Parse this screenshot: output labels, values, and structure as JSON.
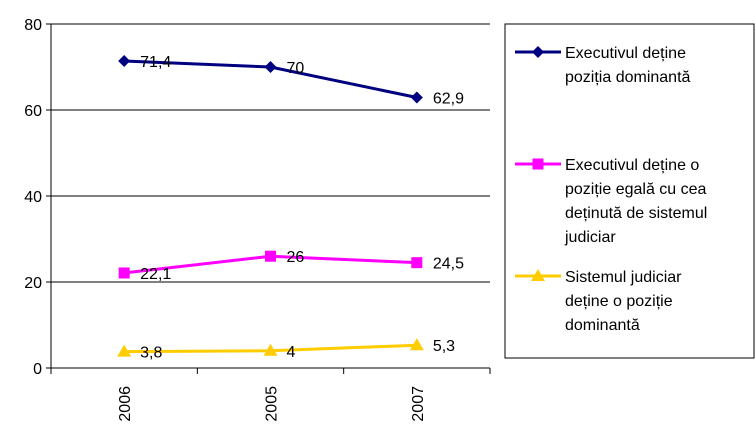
{
  "chart_data": {
    "type": "line",
    "categories": [
      "2006",
      "2005",
      "2007"
    ],
    "ylim": [
      0,
      80
    ],
    "yticks": [
      "0",
      "20",
      "40",
      "60",
      "80"
    ],
    "grid": "horizontal",
    "legend_position": "right",
    "series": [
      {
        "name": "Executivul deține poziția dominantă",
        "name_lines": [
          "Executivul deține",
          "poziția dominantă"
        ],
        "values": [
          71.4,
          70,
          62.9
        ],
        "labels": [
          "71,4",
          "70",
          "62,9"
        ],
        "color": "#000080",
        "marker": "diamond"
      },
      {
        "name": "Executivul deține o poziție egală cu cea deținută de sistemul judiciar",
        "name_lines": [
          "Executivul deține o",
          "poziție egală cu cea",
          "deținută de sistemul",
          "judiciar"
        ],
        "values": [
          22.1,
          26,
          24.5
        ],
        "labels": [
          "22,1",
          "26",
          "24,5"
        ],
        "color": "#FF00FF",
        "marker": "square"
      },
      {
        "name": "Sistemul judiciar deține o poziție dominantă",
        "name_lines": [
          "Sistemul judiciar",
          "deține o poziție",
          "dominantă"
        ],
        "values": [
          3.8,
          4,
          5.3
        ],
        "labels": [
          "3,8",
          "4",
          "5,3"
        ],
        "color": "#FFCC00",
        "marker": "triangle"
      }
    ]
  }
}
